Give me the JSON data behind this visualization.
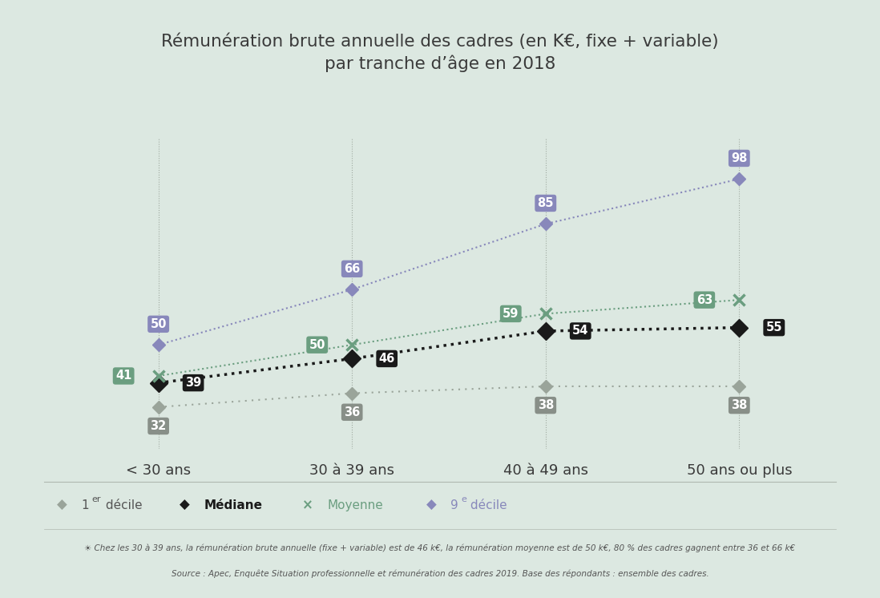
{
  "title": "Rémunération brute annuelle des cadres (en K€, fixe + variable)\npar tranche d’âge en 2018",
  "categories": [
    "< 30 ans",
    "30 à 39 ans",
    "40 à 49 ans",
    "50 ans ou plus"
  ],
  "decile1": [
    32,
    36,
    38,
    38
  ],
  "mediane": [
    39,
    46,
    54,
    55
  ],
  "moyenne": [
    41,
    50,
    59,
    63
  ],
  "decile9": [
    50,
    66,
    85,
    98
  ],
  "colors": {
    "background": "#dce8e1",
    "decile1": "#9aA49a",
    "mediane": "#1a1a1a",
    "moyenne": "#6b9e80",
    "decile9": "#8888bb",
    "vline": "#9aA49a",
    "text_dark": "#3a3a3a",
    "footnote": "#555555",
    "xticklabel": "#3a3a3a"
  },
  "label_colors": {
    "decile1_bg": "#888f88",
    "decile1_text": "#ffffff",
    "mediane_bg": "#1a1a1a",
    "mediane_text": "#ffffff",
    "moyenne_bg": "#6b9e80",
    "moyenne_text": "#ffffff",
    "decile9_bg": "#8888bb",
    "decile9_text": "#ffffff"
  },
  "footnote_line1": "☀ Chez les 30 à 39 ans, la rémunération brute annuelle (fixe + variable) est de 46 k€, la rémunération moyenne est de 50 k€, 80 % des cadres gagnent entre 36 et 66 k€",
  "footnote_line2": "Source : Apec, Enquête Situation professionnelle et rémunération des cadres 2019. Base des répondants : ensemble des cadres."
}
